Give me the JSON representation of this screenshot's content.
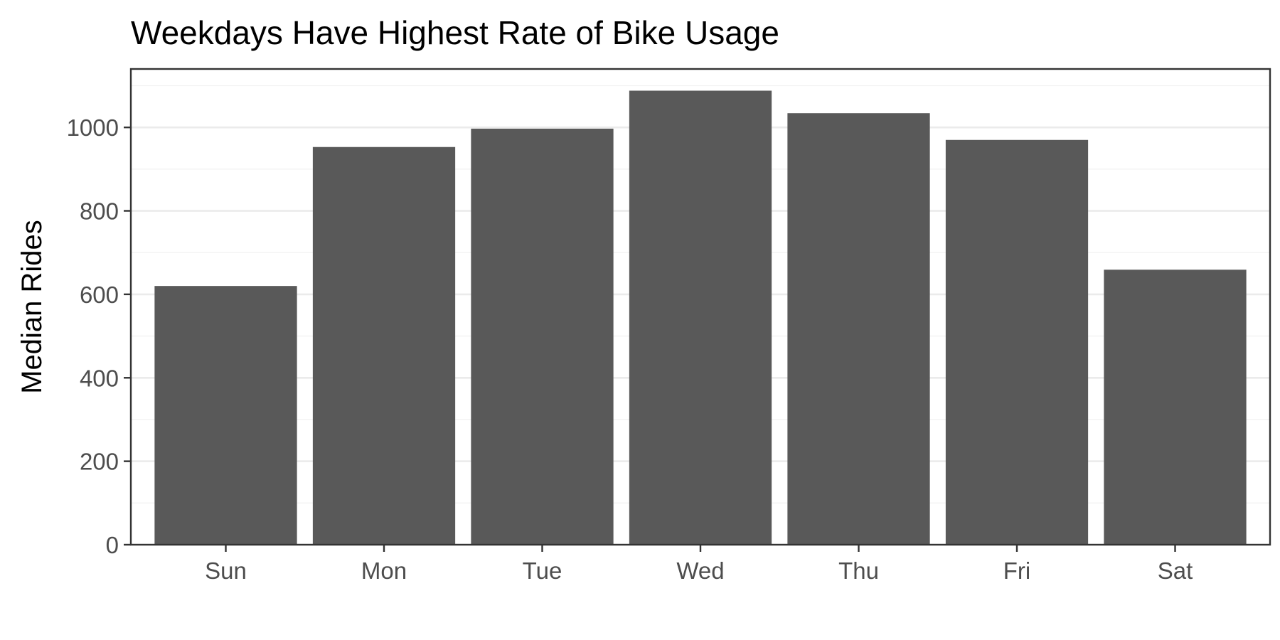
{
  "chart_data": {
    "type": "bar",
    "title": "Weekdays Have Highest Rate of Bike Usage",
    "xlabel": "",
    "ylabel": "Median Rides",
    "categories": [
      "Sun",
      "Mon",
      "Tue",
      "Wed",
      "Thu",
      "Fri",
      "Sat"
    ],
    "values": [
      620,
      953,
      997,
      1088,
      1034,
      970,
      659
    ],
    "ylim": [
      0,
      1140
    ],
    "yticks": [
      0,
      200,
      400,
      600,
      800,
      1000
    ],
    "grid": true,
    "legend": "none",
    "colors": {
      "bar": "#595959",
      "background": "#ffffff",
      "grid": "#ebebeb",
      "border": "#333333"
    }
  }
}
